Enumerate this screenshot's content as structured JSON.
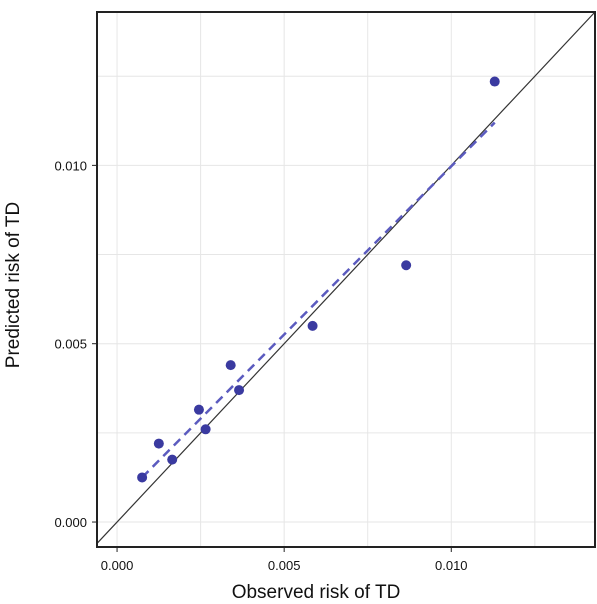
{
  "chart_data": {
    "type": "scatter",
    "title": "",
    "xlabel": "Observed risk of TD",
    "ylabel": "Predicted risk of TD",
    "xlim": [
      -0.0006,
      0.0143
    ],
    "ylim": [
      -0.0007,
      0.0143
    ],
    "x_ticks": [
      "0.000",
      "0.005",
      "0.010"
    ],
    "y_ticks": [
      "0.000",
      "0.005",
      "0.010"
    ],
    "x_tick_values": [
      0.0,
      0.005,
      0.01
    ],
    "y_tick_values": [
      0.0,
      0.005,
      0.01
    ],
    "grid": true,
    "points": [
      {
        "x": 0.00075,
        "y": 0.00125
      },
      {
        "x": 0.00125,
        "y": 0.0022
      },
      {
        "x": 0.00165,
        "y": 0.00175
      },
      {
        "x": 0.00245,
        "y": 0.00315
      },
      {
        "x": 0.00265,
        "y": 0.0026
      },
      {
        "x": 0.0034,
        "y": 0.0044
      },
      {
        "x": 0.00365,
        "y": 0.0037
      },
      {
        "x": 0.00585,
        "y": 0.0055
      },
      {
        "x": 0.00865,
        "y": 0.0072
      },
      {
        "x": 0.0113,
        "y": 0.01235
      }
    ],
    "fit_line": {
      "x": [
        0.00075,
        0.0113
      ],
      "y": [
        0.00125,
        0.0112
      ]
    },
    "reference_line": {
      "x": [
        -0.0006,
        0.0143
      ],
      "y": [
        -0.0006,
        0.0143
      ]
    },
    "colors": {
      "points": "#3a3aa0",
      "fit_line": "#5b5bbf",
      "reference_line": "#333333",
      "grid": "#e6e6e6",
      "frame": "#222222"
    }
  }
}
